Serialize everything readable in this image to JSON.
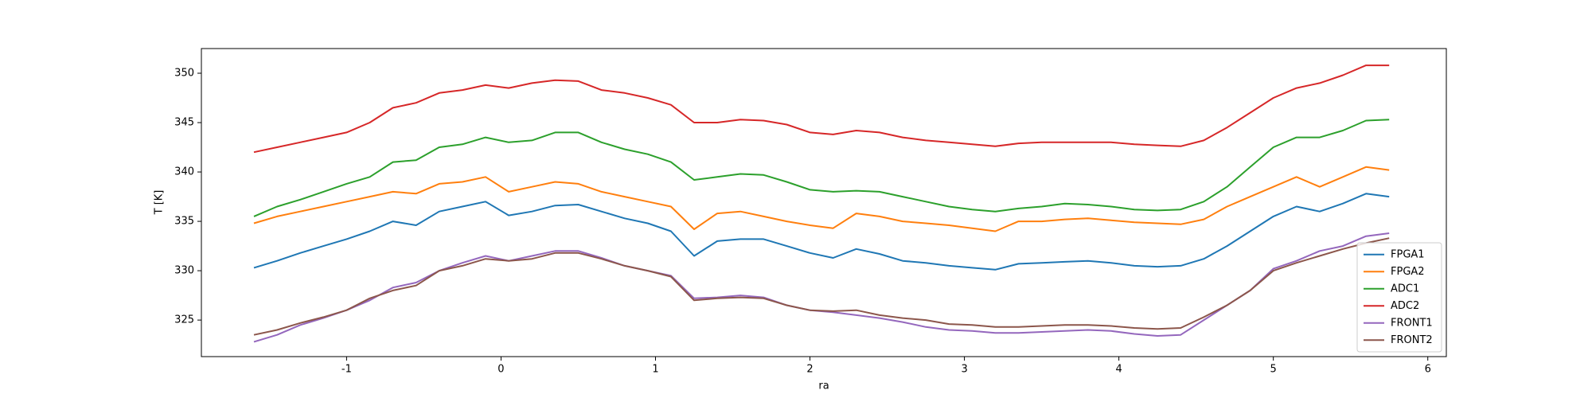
{
  "chart_data": {
    "type": "line",
    "xlabel": "ra",
    "ylabel": "T [K]",
    "x": [
      -1.6,
      -1.45,
      -1.3,
      -1.15,
      -1.0,
      -0.85,
      -0.7,
      -0.55,
      -0.4,
      -0.25,
      -0.1,
      0.05,
      0.2,
      0.35,
      0.5,
      0.65,
      0.8,
      0.95,
      1.1,
      1.25,
      1.4,
      1.55,
      1.7,
      1.85,
      2.0,
      2.15,
      2.3,
      2.45,
      2.6,
      2.75,
      2.9,
      3.05,
      3.2,
      3.35,
      3.5,
      3.65,
      3.8,
      3.95,
      4.1,
      4.25,
      4.4,
      4.55,
      4.7,
      4.85,
      5.0,
      5.15,
      5.3,
      5.45,
      5.6,
      5.75
    ],
    "series": [
      {
        "name": "FPGA1",
        "color": "#1f77b4",
        "values": [
          330.3,
          331,
          331.8,
          332.5,
          333.2,
          334,
          335,
          334.6,
          336,
          336.5,
          337,
          335.6,
          336,
          336.6,
          336.7,
          336,
          335.3,
          334.8,
          334,
          331.5,
          333,
          333.2,
          333.2,
          332.5,
          331.8,
          331.3,
          332.2,
          331.7,
          331,
          330.8,
          330.5,
          330.3,
          330.1,
          330.7,
          330.8,
          330.9,
          331,
          330.8,
          330.5,
          330.4,
          330.5,
          331.2,
          332.5,
          334,
          335.5,
          336.5,
          336,
          336.8,
          337.8,
          337.5
        ]
      },
      {
        "name": "FPGA2",
        "color": "#ff7f0e",
        "values": [
          334.8,
          335.5,
          336,
          336.5,
          337,
          337.5,
          338,
          337.8,
          338.8,
          339,
          339.5,
          338,
          338.5,
          339,
          338.8,
          338,
          337.5,
          337,
          336.5,
          334.2,
          335.8,
          336,
          335.5,
          335,
          334.6,
          334.3,
          335.8,
          335.5,
          335,
          334.8,
          334.6,
          334.3,
          334,
          335,
          335,
          335.2,
          335.3,
          335.1,
          334.9,
          334.8,
          334.7,
          335.2,
          336.5,
          337.5,
          338.5,
          339.5,
          338.5,
          339.5,
          340.5,
          340.2
        ]
      },
      {
        "name": "ADC1",
        "color": "#2ca02c",
        "values": [
          335.5,
          336.5,
          337.2,
          338,
          338.8,
          339.5,
          341,
          341.2,
          342.5,
          342.8,
          343.5,
          343,
          343.2,
          344,
          344,
          343,
          342.3,
          341.8,
          341,
          339.2,
          339.5,
          339.8,
          339.7,
          339,
          338.2,
          338,
          338.1,
          338,
          337.5,
          337,
          336.5,
          336.2,
          336,
          336.3,
          336.5,
          336.8,
          336.7,
          336.5,
          336.2,
          336.1,
          336.2,
          337,
          338.5,
          340.5,
          342.5,
          343.5,
          343.5,
          344.2,
          345.2,
          345.3
        ]
      },
      {
        "name": "ADC2",
        "color": "#d62728",
        "values": [
          342,
          342.5,
          343,
          343.5,
          344,
          345,
          346.5,
          347,
          348,
          348.3,
          348.8,
          348.5,
          349,
          349.3,
          349.2,
          348.3,
          348,
          347.5,
          346.8,
          345,
          345,
          345.3,
          345.2,
          344.8,
          344,
          343.8,
          344.2,
          344,
          343.5,
          343.2,
          343,
          342.8,
          342.6,
          342.9,
          343,
          343,
          343,
          343,
          342.8,
          342.7,
          342.6,
          343.2,
          344.5,
          346,
          347.5,
          348.5,
          349,
          349.8,
          350.8,
          350.8
        ]
      },
      {
        "name": "FRONT1",
        "color": "#9467bd",
        "values": [
          322.8,
          323.5,
          324.5,
          325.2,
          326,
          327,
          328.3,
          328.8,
          330,
          330.8,
          331.5,
          331,
          331.5,
          332,
          332,
          331.3,
          330.5,
          330,
          329.5,
          327.2,
          327.3,
          327.5,
          327.3,
          326.5,
          326,
          325.8,
          325.5,
          325.2,
          324.8,
          324.3,
          324,
          323.9,
          323.7,
          323.7,
          323.8,
          323.9,
          324,
          323.9,
          323.6,
          323.4,
          323.5,
          325,
          326.5,
          328,
          330.2,
          331,
          332,
          332.5,
          333.5,
          333.8
        ]
      },
      {
        "name": "FRONT2",
        "color": "#8c564b",
        "values": [
          323.5,
          324,
          324.7,
          325.3,
          326,
          327.2,
          328,
          328.5,
          330,
          330.5,
          331.2,
          331,
          331.2,
          331.8,
          331.8,
          331.2,
          330.5,
          330,
          329.4,
          327,
          327.2,
          327.3,
          327.2,
          326.5,
          326,
          325.9,
          326,
          325.5,
          325.2,
          325,
          324.6,
          324.5,
          324.3,
          324.3,
          324.4,
          324.5,
          324.5,
          324.4,
          324.2,
          324.1,
          324.2,
          325.3,
          326.5,
          328,
          330,
          330.8,
          331.5,
          332.2,
          332.8,
          333.3
        ]
      }
    ],
    "xlim": [
      -1.94,
      6.12
    ],
    "xticks": [
      -1,
      0,
      1,
      2,
      3,
      4,
      5,
      6
    ],
    "ylim": [
      321.3,
      352.5
    ],
    "yticks": [
      325,
      330,
      335,
      340,
      345,
      350
    ],
    "legend": "lower right",
    "grid": false
  }
}
